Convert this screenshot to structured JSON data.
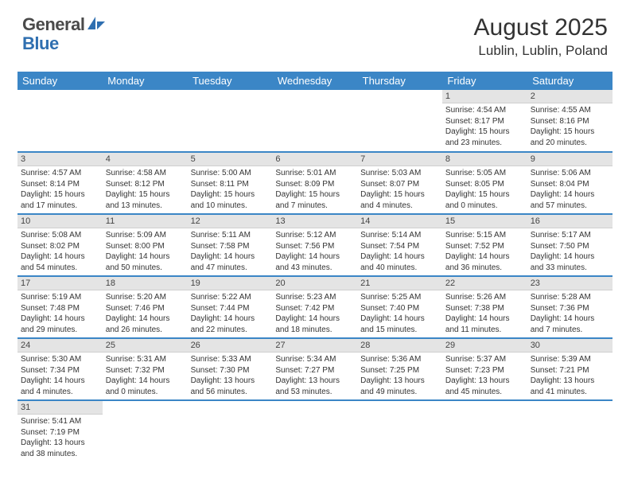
{
  "logo": {
    "text1": "General",
    "text2": "Blue"
  },
  "title": "August 2025",
  "location": "Lublin, Lublin, Poland",
  "colors": {
    "header_bg": "#3b86c6",
    "header_text": "#ffffff",
    "daynum_bg": "#e4e4e4",
    "row_border": "#3b86c6",
    "logo_gray": "#4a4a4a",
    "logo_blue": "#2f6fb0",
    "page_bg": "#ffffff"
  },
  "weekdays": [
    "Sunday",
    "Monday",
    "Tuesday",
    "Wednesday",
    "Thursday",
    "Friday",
    "Saturday"
  ],
  "weeks": [
    [
      null,
      null,
      null,
      null,
      null,
      {
        "n": "1",
        "sr": "Sunrise: 4:54 AM",
        "ss": "Sunset: 8:17 PM",
        "d1": "Daylight: 15 hours",
        "d2": "and 23 minutes."
      },
      {
        "n": "2",
        "sr": "Sunrise: 4:55 AM",
        "ss": "Sunset: 8:16 PM",
        "d1": "Daylight: 15 hours",
        "d2": "and 20 minutes."
      }
    ],
    [
      {
        "n": "3",
        "sr": "Sunrise: 4:57 AM",
        "ss": "Sunset: 8:14 PM",
        "d1": "Daylight: 15 hours",
        "d2": "and 17 minutes."
      },
      {
        "n": "4",
        "sr": "Sunrise: 4:58 AM",
        "ss": "Sunset: 8:12 PM",
        "d1": "Daylight: 15 hours",
        "d2": "and 13 minutes."
      },
      {
        "n": "5",
        "sr": "Sunrise: 5:00 AM",
        "ss": "Sunset: 8:11 PM",
        "d1": "Daylight: 15 hours",
        "d2": "and 10 minutes."
      },
      {
        "n": "6",
        "sr": "Sunrise: 5:01 AM",
        "ss": "Sunset: 8:09 PM",
        "d1": "Daylight: 15 hours",
        "d2": "and 7 minutes."
      },
      {
        "n": "7",
        "sr": "Sunrise: 5:03 AM",
        "ss": "Sunset: 8:07 PM",
        "d1": "Daylight: 15 hours",
        "d2": "and 4 minutes."
      },
      {
        "n": "8",
        "sr": "Sunrise: 5:05 AM",
        "ss": "Sunset: 8:05 PM",
        "d1": "Daylight: 15 hours",
        "d2": "and 0 minutes."
      },
      {
        "n": "9",
        "sr": "Sunrise: 5:06 AM",
        "ss": "Sunset: 8:04 PM",
        "d1": "Daylight: 14 hours",
        "d2": "and 57 minutes."
      }
    ],
    [
      {
        "n": "10",
        "sr": "Sunrise: 5:08 AM",
        "ss": "Sunset: 8:02 PM",
        "d1": "Daylight: 14 hours",
        "d2": "and 54 minutes."
      },
      {
        "n": "11",
        "sr": "Sunrise: 5:09 AM",
        "ss": "Sunset: 8:00 PM",
        "d1": "Daylight: 14 hours",
        "d2": "and 50 minutes."
      },
      {
        "n": "12",
        "sr": "Sunrise: 5:11 AM",
        "ss": "Sunset: 7:58 PM",
        "d1": "Daylight: 14 hours",
        "d2": "and 47 minutes."
      },
      {
        "n": "13",
        "sr": "Sunrise: 5:12 AM",
        "ss": "Sunset: 7:56 PM",
        "d1": "Daylight: 14 hours",
        "d2": "and 43 minutes."
      },
      {
        "n": "14",
        "sr": "Sunrise: 5:14 AM",
        "ss": "Sunset: 7:54 PM",
        "d1": "Daylight: 14 hours",
        "d2": "and 40 minutes."
      },
      {
        "n": "15",
        "sr": "Sunrise: 5:15 AM",
        "ss": "Sunset: 7:52 PM",
        "d1": "Daylight: 14 hours",
        "d2": "and 36 minutes."
      },
      {
        "n": "16",
        "sr": "Sunrise: 5:17 AM",
        "ss": "Sunset: 7:50 PM",
        "d1": "Daylight: 14 hours",
        "d2": "and 33 minutes."
      }
    ],
    [
      {
        "n": "17",
        "sr": "Sunrise: 5:19 AM",
        "ss": "Sunset: 7:48 PM",
        "d1": "Daylight: 14 hours",
        "d2": "and 29 minutes."
      },
      {
        "n": "18",
        "sr": "Sunrise: 5:20 AM",
        "ss": "Sunset: 7:46 PM",
        "d1": "Daylight: 14 hours",
        "d2": "and 26 minutes."
      },
      {
        "n": "19",
        "sr": "Sunrise: 5:22 AM",
        "ss": "Sunset: 7:44 PM",
        "d1": "Daylight: 14 hours",
        "d2": "and 22 minutes."
      },
      {
        "n": "20",
        "sr": "Sunrise: 5:23 AM",
        "ss": "Sunset: 7:42 PM",
        "d1": "Daylight: 14 hours",
        "d2": "and 18 minutes."
      },
      {
        "n": "21",
        "sr": "Sunrise: 5:25 AM",
        "ss": "Sunset: 7:40 PM",
        "d1": "Daylight: 14 hours",
        "d2": "and 15 minutes."
      },
      {
        "n": "22",
        "sr": "Sunrise: 5:26 AM",
        "ss": "Sunset: 7:38 PM",
        "d1": "Daylight: 14 hours",
        "d2": "and 11 minutes."
      },
      {
        "n": "23",
        "sr": "Sunrise: 5:28 AM",
        "ss": "Sunset: 7:36 PM",
        "d1": "Daylight: 14 hours",
        "d2": "and 7 minutes."
      }
    ],
    [
      {
        "n": "24",
        "sr": "Sunrise: 5:30 AM",
        "ss": "Sunset: 7:34 PM",
        "d1": "Daylight: 14 hours",
        "d2": "and 4 minutes."
      },
      {
        "n": "25",
        "sr": "Sunrise: 5:31 AM",
        "ss": "Sunset: 7:32 PM",
        "d1": "Daylight: 14 hours",
        "d2": "and 0 minutes."
      },
      {
        "n": "26",
        "sr": "Sunrise: 5:33 AM",
        "ss": "Sunset: 7:30 PM",
        "d1": "Daylight: 13 hours",
        "d2": "and 56 minutes."
      },
      {
        "n": "27",
        "sr": "Sunrise: 5:34 AM",
        "ss": "Sunset: 7:27 PM",
        "d1": "Daylight: 13 hours",
        "d2": "and 53 minutes."
      },
      {
        "n": "28",
        "sr": "Sunrise: 5:36 AM",
        "ss": "Sunset: 7:25 PM",
        "d1": "Daylight: 13 hours",
        "d2": "and 49 minutes."
      },
      {
        "n": "29",
        "sr": "Sunrise: 5:37 AM",
        "ss": "Sunset: 7:23 PM",
        "d1": "Daylight: 13 hours",
        "d2": "and 45 minutes."
      },
      {
        "n": "30",
        "sr": "Sunrise: 5:39 AM",
        "ss": "Sunset: 7:21 PM",
        "d1": "Daylight: 13 hours",
        "d2": "and 41 minutes."
      }
    ],
    [
      {
        "n": "31",
        "sr": "Sunrise: 5:41 AM",
        "ss": "Sunset: 7:19 PM",
        "d1": "Daylight: 13 hours",
        "d2": "and 38 minutes."
      },
      null,
      null,
      null,
      null,
      null,
      null
    ]
  ]
}
